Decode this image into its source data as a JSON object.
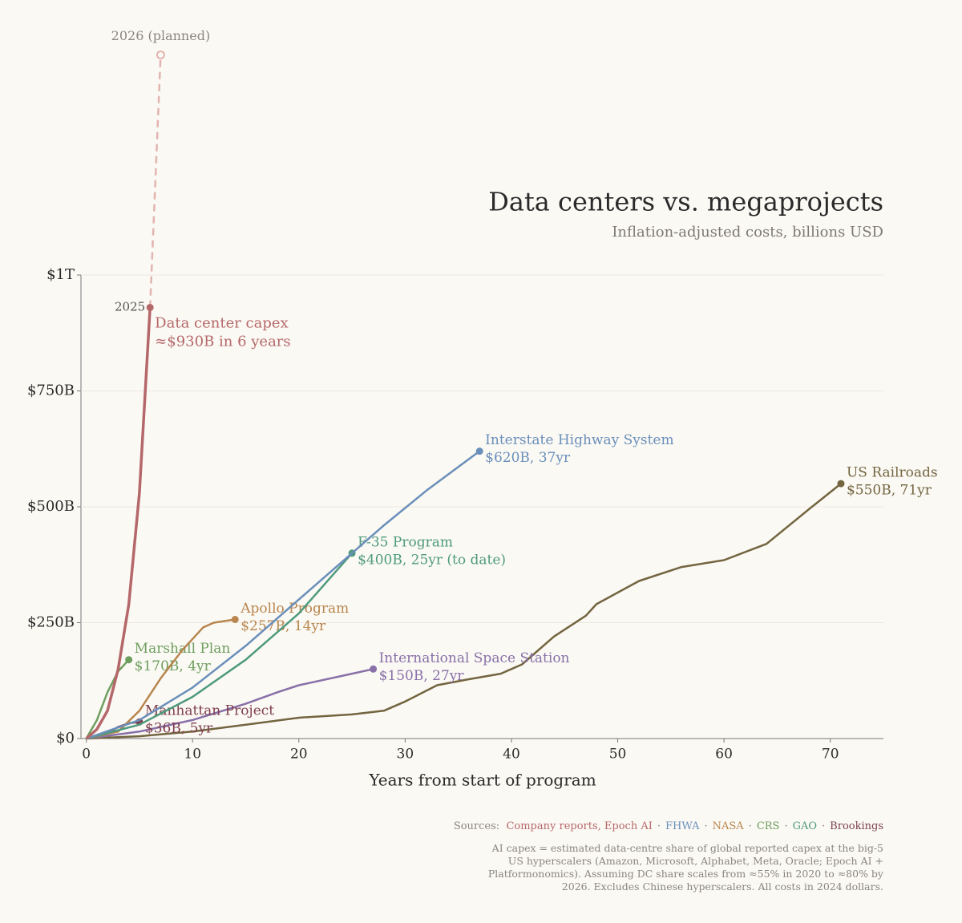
{
  "chart_data": {
    "type": "line",
    "title": "Data centers vs. megaprojects",
    "subtitle": "Inflation-adjusted costs, billions USD",
    "xlabel": "Years from start of program",
    "xlim": [
      -0.5,
      75
    ],
    "xticks": [
      0,
      10,
      20,
      30,
      40,
      50,
      60,
      70
    ],
    "ylim": [
      0,
      1000
    ],
    "yticks": [
      {
        "value": 0,
        "label": "$0"
      },
      {
        "value": 250,
        "label": "$250B"
      },
      {
        "value": 500,
        "label": "$500B"
      },
      {
        "value": 750,
        "label": "$750B"
      },
      {
        "value": 1000,
        "label": "$1T"
      }
    ],
    "grid": true,
    "series": [
      {
        "name": "Data center capex",
        "label": "≈$930B in 6 years",
        "end_label": "2025",
        "color": "#b5686a",
        "x": [
          0,
          1,
          2,
          3,
          4,
          5,
          6
        ],
        "values": [
          0,
          20,
          60,
          150,
          290,
          530,
          930
        ]
      },
      {
        "name": "2026 (planned)",
        "color": "#e2b4b0",
        "dashed": true,
        "x": [
          6,
          7
        ],
        "values": [
          930,
          1475
        ]
      },
      {
        "name": "Interstate Highway System",
        "label": "$620B, 37yr",
        "color": "#6a8fba",
        "x": [
          0,
          5,
          10,
          15,
          20,
          25,
          28,
          32,
          37
        ],
        "values": [
          0,
          40,
          110,
          200,
          300,
          400,
          460,
          535,
          620
        ]
      },
      {
        "name": "F-35 Program",
        "label": "$400B, 25yr (to date)",
        "color": "#4e9a7f",
        "x": [
          0,
          5,
          10,
          15,
          20,
          25
        ],
        "values": [
          0,
          30,
          90,
          170,
          270,
          400
        ]
      },
      {
        "name": "Apollo Program",
        "label": "$257B, 14yr",
        "color": "#b8864e",
        "x": [
          0,
          3,
          5,
          7,
          9,
          11,
          12,
          14
        ],
        "values": [
          0,
          15,
          60,
          130,
          190,
          240,
          250,
          257
        ]
      },
      {
        "name": "Marshall Plan",
        "label": "$170B, 4yr",
        "color": "#6e9e5e",
        "x": [
          0,
          1,
          2,
          3,
          4
        ],
        "values": [
          0,
          40,
          100,
          145,
          170
        ]
      },
      {
        "name": "Manhattan Project",
        "label": "$36B, 5yr",
        "color": "#7e3f4f",
        "x": [
          0,
          1,
          2,
          3,
          4,
          5
        ],
        "values": [
          0,
          5,
          12,
          25,
          33,
          36
        ]
      },
      {
        "name": "International Space Station",
        "label": "$150B, 27yr",
        "color": "#8870a8",
        "x": [
          0,
          5,
          10,
          15,
          18,
          20,
          25,
          27
        ],
        "values": [
          0,
          15,
          40,
          75,
          100,
          115,
          140,
          150
        ]
      },
      {
        "name": "US Railroads",
        "label": "$550B, 71yr",
        "color": "#736540",
        "x": [
          0,
          5,
          10,
          15,
          20,
          25,
          28,
          30,
          33,
          36,
          39,
          41,
          44,
          47,
          48,
          52,
          56,
          60,
          64,
          68,
          71
        ],
        "values": [
          0,
          5,
          15,
          30,
          45,
          52,
          60,
          80,
          115,
          128,
          140,
          160,
          220,
          265,
          290,
          340,
          370,
          385,
          420,
          495,
          550
        ]
      }
    ],
    "sources_label": "Sources:",
    "separator": "·",
    "sources": [
      {
        "text": "Company reports, Epoch AI",
        "color": "#b5686a"
      },
      {
        "text": "FHWA",
        "color": "#6a8fba"
      },
      {
        "text": "NASA",
        "color": "#b8864e"
      },
      {
        "text": "CRS",
        "color": "#6e9e5e"
      },
      {
        "text": "GAO",
        "color": "#4e9a7f"
      },
      {
        "text": "Brookings",
        "color": "#7e3f4f"
      }
    ],
    "note": [
      "AI capex = estimated data-centre share of global reported capex at the big-5",
      "US hyperscalers (Amazon, Microsoft, Alphabet, Meta, Oracle; Epoch AI +",
      "Platformonomics). Assuming DC share scales from ≈55% in 2020 to ≈80% by",
      "2026. Excludes Chinese hyperscalers. All costs in 2024 dollars."
    ]
  }
}
